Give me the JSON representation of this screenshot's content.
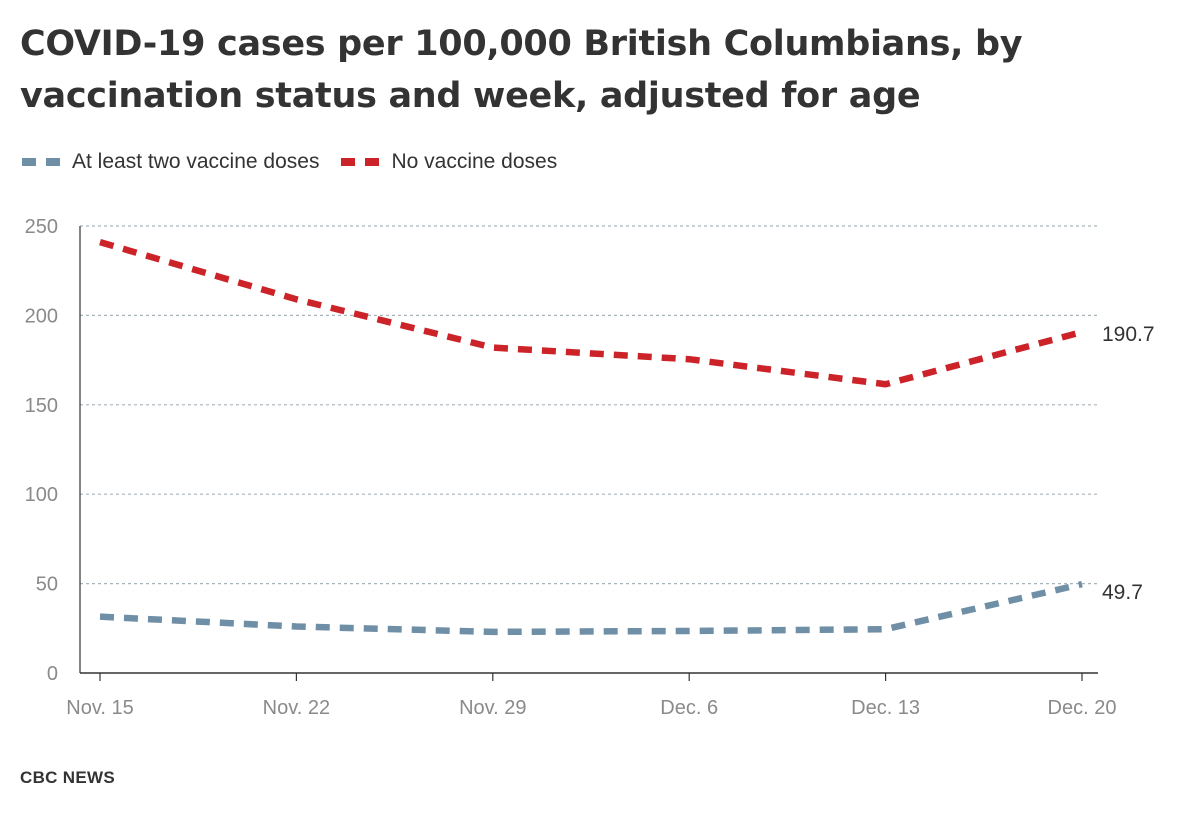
{
  "chart_data": {
    "type": "line",
    "title": "COVID-19 cases per 100,000 British Columbians, by vaccination status and week, adjusted for age",
    "xlabel": "",
    "ylabel": "",
    "categories": [
      "Nov. 15",
      "Nov. 22",
      "Nov. 29",
      "Dec. 6",
      "Dec. 13",
      "Dec. 20"
    ],
    "yticks": [
      0,
      50,
      100,
      150,
      200,
      250
    ],
    "ylim": [
      0,
      250
    ],
    "grid": true,
    "legend_position": "top-left",
    "series": [
      {
        "name": "At least two vaccine doses",
        "color": "#6f8fa6",
        "values": [
          31.5,
          26,
          23,
          23.5,
          24.5,
          49.7
        ],
        "end_label": "49.7"
      },
      {
        "name": "No vaccine doses",
        "color": "#cc2329",
        "values": [
          241,
          209,
          182,
          175.5,
          161.5,
          190.7
        ],
        "end_label": "190.7"
      }
    ]
  },
  "source": "CBC NEWS"
}
